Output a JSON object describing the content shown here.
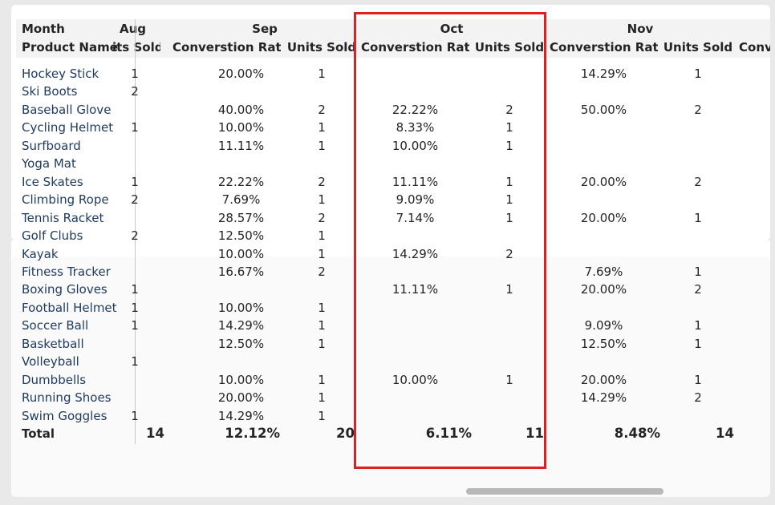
{
  "header": {
    "month_label": "Month",
    "product_label": "Product Name",
    "months": [
      "Aug",
      "Sep",
      "Oct",
      "Nov"
    ],
    "aug_units_clipped": "its Sold",
    "sep_conv": "Converstion Rate",
    "sep_units": "Units Sold",
    "oct_conv": "Converstion Rate",
    "oct_units": "Units Sold",
    "nov_conv": "Converstion Rate",
    "nov_units": "Units Sold",
    "dec_conv_clipped": "Conv"
  },
  "rows": [
    {
      "product": "Hockey Stick",
      "aug_units": "1",
      "sep_conv": "20.00%",
      "sep_units": "1",
      "oct_conv": "",
      "oct_units": "",
      "nov_conv": "14.29%",
      "nov_units": "1"
    },
    {
      "product": "Ski Boots",
      "aug_units": "2",
      "sep_conv": "",
      "sep_units": "",
      "oct_conv": "",
      "oct_units": "",
      "nov_conv": "",
      "nov_units": ""
    },
    {
      "product": "Baseball Glove",
      "aug_units": "",
      "sep_conv": "40.00%",
      "sep_units": "2",
      "oct_conv": "22.22%",
      "oct_units": "2",
      "nov_conv": "50.00%",
      "nov_units": "2"
    },
    {
      "product": "Cycling Helmet",
      "aug_units": "1",
      "sep_conv": "10.00%",
      "sep_units": "1",
      "oct_conv": "8.33%",
      "oct_units": "1",
      "nov_conv": "",
      "nov_units": ""
    },
    {
      "product": "Surfboard",
      "aug_units": "",
      "sep_conv": "11.11%",
      "sep_units": "1",
      "oct_conv": "10.00%",
      "oct_units": "1",
      "nov_conv": "",
      "nov_units": ""
    },
    {
      "product": "Yoga Mat",
      "aug_units": "",
      "sep_conv": "",
      "sep_units": "",
      "oct_conv": "",
      "oct_units": "",
      "nov_conv": "",
      "nov_units": ""
    },
    {
      "product": "Ice Skates",
      "aug_units": "1",
      "sep_conv": "22.22%",
      "sep_units": "2",
      "oct_conv": "11.11%",
      "oct_units": "1",
      "nov_conv": "20.00%",
      "nov_units": "2"
    },
    {
      "product": "Climbing Rope",
      "aug_units": "2",
      "sep_conv": "7.69%",
      "sep_units": "1",
      "oct_conv": "9.09%",
      "oct_units": "1",
      "nov_conv": "",
      "nov_units": ""
    },
    {
      "product": "Tennis Racket",
      "aug_units": "",
      "sep_conv": "28.57%",
      "sep_units": "2",
      "oct_conv": "7.14%",
      "oct_units": "1",
      "nov_conv": "20.00%",
      "nov_units": "1"
    },
    {
      "product": "Golf Clubs",
      "aug_units": "2",
      "sep_conv": "12.50%",
      "sep_units": "1",
      "oct_conv": "",
      "oct_units": "",
      "nov_conv": "",
      "nov_units": ""
    },
    {
      "product": "Kayak",
      "aug_units": "",
      "sep_conv": "10.00%",
      "sep_units": "1",
      "oct_conv": "14.29%",
      "oct_units": "2",
      "nov_conv": "",
      "nov_units": ""
    },
    {
      "product": "Fitness Tracker",
      "aug_units": "",
      "sep_conv": "16.67%",
      "sep_units": "2",
      "oct_conv": "",
      "oct_units": "",
      "nov_conv": "7.69%",
      "nov_units": "1"
    },
    {
      "product": "Boxing Gloves",
      "aug_units": "1",
      "sep_conv": "",
      "sep_units": "",
      "oct_conv": "11.11%",
      "oct_units": "1",
      "nov_conv": "20.00%",
      "nov_units": "2"
    },
    {
      "product": "Football Helmet",
      "aug_units": "1",
      "sep_conv": "10.00%",
      "sep_units": "1",
      "oct_conv": "",
      "oct_units": "",
      "nov_conv": "",
      "nov_units": ""
    },
    {
      "product": "Soccer Ball",
      "aug_units": "1",
      "sep_conv": "14.29%",
      "sep_units": "1",
      "oct_conv": "",
      "oct_units": "",
      "nov_conv": "9.09%",
      "nov_units": "1"
    },
    {
      "product": "Basketball",
      "aug_units": "",
      "sep_conv": "12.50%",
      "sep_units": "1",
      "oct_conv": "",
      "oct_units": "",
      "nov_conv": "12.50%",
      "nov_units": "1"
    },
    {
      "product": "Volleyball",
      "aug_units": "1",
      "sep_conv": "",
      "sep_units": "",
      "oct_conv": "",
      "oct_units": "",
      "nov_conv": "",
      "nov_units": ""
    },
    {
      "product": "Dumbbells",
      "aug_units": "",
      "sep_conv": "10.00%",
      "sep_units": "1",
      "oct_conv": "10.00%",
      "oct_units": "1",
      "nov_conv": "20.00%",
      "nov_units": "1"
    },
    {
      "product": "Running Shoes",
      "aug_units": "",
      "sep_conv": "20.00%",
      "sep_units": "1",
      "oct_conv": "",
      "oct_units": "",
      "nov_conv": "14.29%",
      "nov_units": "2"
    },
    {
      "product": "Swim Goggles",
      "aug_units": "1",
      "sep_conv": "14.29%",
      "sep_units": "1",
      "oct_conv": "",
      "oct_units": "",
      "nov_conv": "",
      "nov_units": ""
    }
  ],
  "totals": {
    "label": "Total",
    "aug_units": "14",
    "sep_conv": "12.12%",
    "sep_units": "20",
    "oct_conv": "6.11%",
    "oct_units": "11",
    "nov_conv": "8.48%",
    "nov_units": "14"
  },
  "colors": {
    "highlight": "#e02020",
    "row_label": "#1e3a5f",
    "scrollbar": "#b8b8b8"
  }
}
